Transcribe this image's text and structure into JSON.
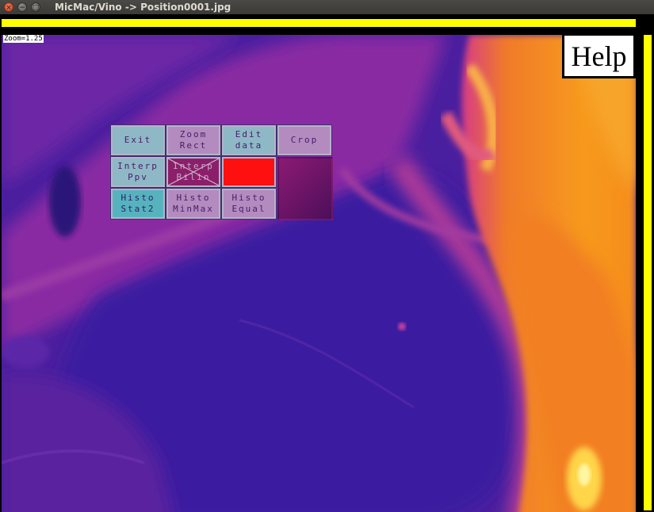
{
  "window": {
    "title": "MicMac/Vino -> Position0001.jpg",
    "controls": {
      "close": "×",
      "minimize": "−",
      "maximize": "□"
    }
  },
  "viewer": {
    "zoom_label": "Zoom=1.25",
    "help_label": "Help",
    "indicator_color": "#ffff00"
  },
  "menu": {
    "rows": [
      [
        {
          "id": "exit",
          "line1": "Exit",
          "line2": ""
        },
        {
          "id": "zoom-rect",
          "line1": "Zoom",
          "line2": "Rect"
        },
        {
          "id": "edit-data",
          "line1": "Edit",
          "line2": "data"
        },
        {
          "id": "crop",
          "line1": "Crop",
          "line2": ""
        }
      ],
      [
        {
          "id": "interp-ppv",
          "line1": "Interp",
          "line2": "Ppv"
        },
        {
          "id": "interp-bilin",
          "line1": "Interp",
          "line2": "Bilin"
        },
        {
          "id": "red-swatch",
          "line1": "",
          "line2": ""
        },
        {
          "id": "empty",
          "line1": "",
          "line2": ""
        }
      ],
      [
        {
          "id": "histo-stat2",
          "line1": "Histo",
          "line2": "Stat2"
        },
        {
          "id": "histo-minmax",
          "line1": "Histo",
          "line2": "MinMax"
        },
        {
          "id": "histo-equal",
          "line1": "Histo",
          "line2": "Equal"
        },
        {
          "id": "empty2",
          "line1": "",
          "line2": ""
        }
      ]
    ]
  }
}
